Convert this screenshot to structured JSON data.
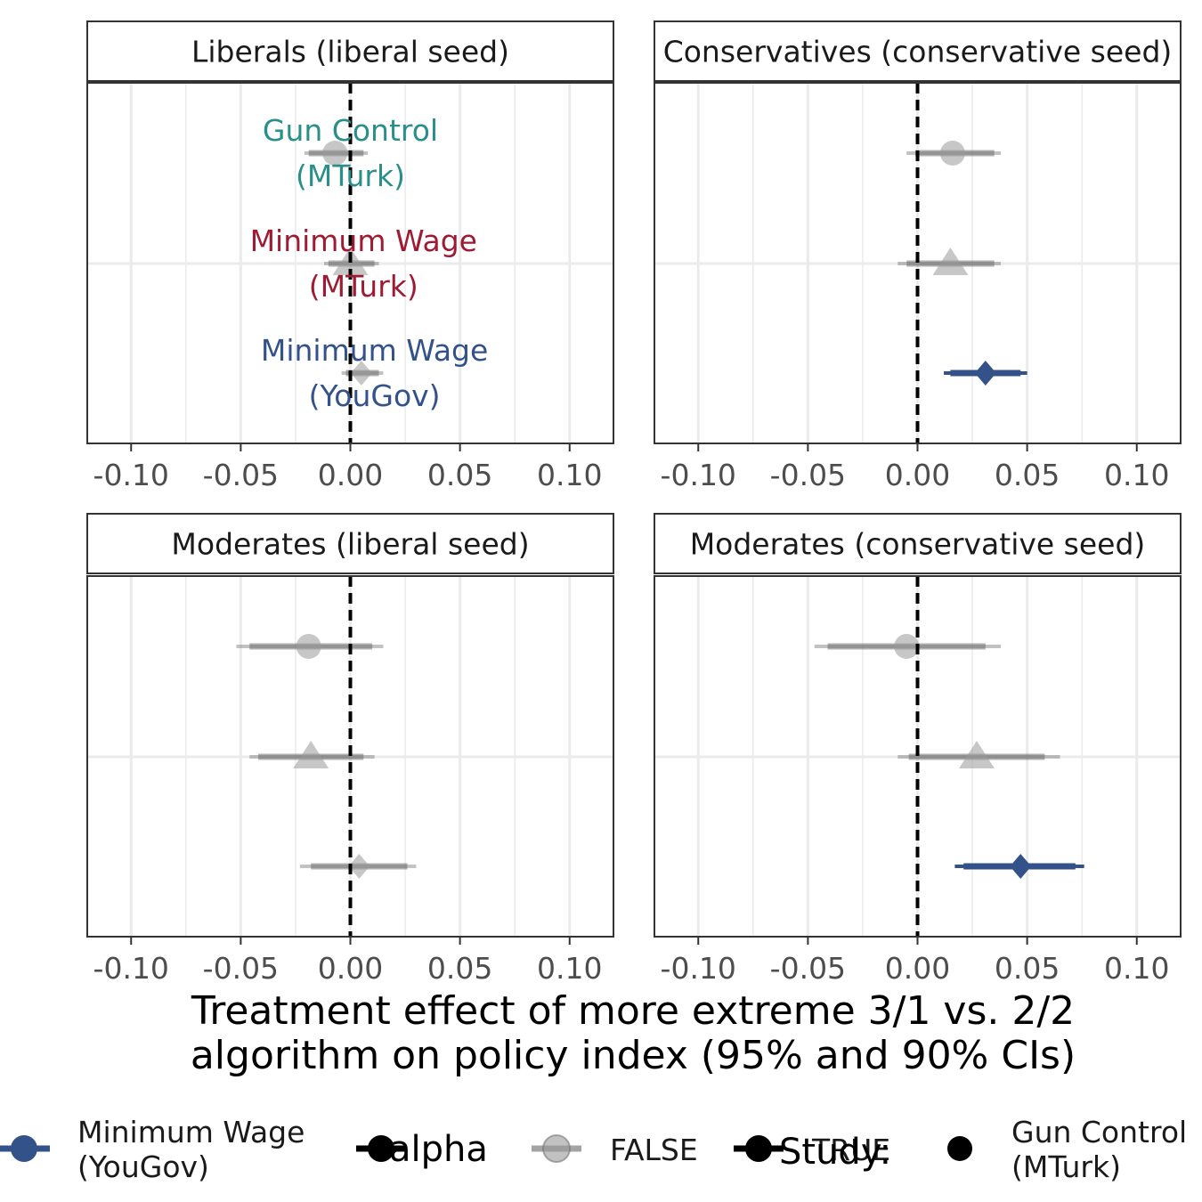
{
  "x_axis_title_line1": "Treatment effect of more extreme 3/1 vs. 2/2",
  "x_axis_title_line2": "algorithm on policy index (95% and 90% CIs)",
  "colors": {
    "youGov": "#33528a",
    "gunControl": "#2a8f8a",
    "minWageMTurk": "#9e1b34",
    "nonsig": "#999999",
    "zeroline": "#000000",
    "grid": "#ebebeb",
    "panel_border": "#333333"
  },
  "legend": {
    "item1_line1": "Minimum Wage",
    "item1_line2": "(YouGov)",
    "alpha_label": "alpha",
    "false_label": "FALSE",
    "study_label": "Study:",
    "true_label": "TRUE",
    "item_gun_line1": "Gun Control",
    "item_gun_line2": "(MTurk)"
  },
  "chart_data": [
    {
      "type": "scatter",
      "title": "Liberals  (liberal seed)",
      "xlim": [
        -0.12,
        0.12
      ],
      "x_ticks": [
        -0.1,
        -0.05,
        0.0,
        0.05,
        0.1
      ],
      "x_tick_labels": [
        "-0.10",
        "-0.05",
        "0.00",
        "0.05",
        "0.10"
      ],
      "estimates": [
        {
          "study": "Gun Control (MTurk)",
          "shape": "circle",
          "estimate": -0.007,
          "ci95": [
            -0.021,
            0.008
          ],
          "ci90": [
            -0.019,
            0.006
          ],
          "significant": false
        },
        {
          "study": "Minimum Wage (MTurk)",
          "shape": "triangle",
          "estimate": 0.0,
          "ci95": [
            -0.012,
            0.013
          ],
          "ci90": [
            -0.01,
            0.011
          ],
          "significant": false
        },
        {
          "study": "Minimum Wage (YouGov)",
          "shape": "diamond",
          "estimate": 0.005,
          "ci95": [
            -0.004,
            0.015
          ],
          "ci90": [
            -0.002,
            0.013
          ],
          "significant": false
        }
      ],
      "annotations": [
        {
          "line1": "Gun Control",
          "line2": "(MTurk)",
          "colorKey": "gunControl",
          "row": 0
        },
        {
          "line1": "Minimum Wage",
          "line2": "(MTurk)",
          "colorKey": "minWageMTurk",
          "row": 1
        },
        {
          "line1": "Minimum Wage",
          "line2": "(YouGov)",
          "colorKey": "youGov",
          "row": 2
        }
      ]
    },
    {
      "type": "scatter",
      "title": "Conservatives  (conservative seed)",
      "xlim": [
        -0.12,
        0.12
      ],
      "x_ticks": [
        -0.1,
        -0.05,
        0.0,
        0.05,
        0.1
      ],
      "x_tick_labels": [
        "-0.10",
        "-0.05",
        "0.00",
        "0.05",
        "0.10"
      ],
      "estimates": [
        {
          "study": "Gun Control (MTurk)",
          "shape": "circle",
          "estimate": 0.016,
          "ci95": [
            -0.005,
            0.038
          ],
          "ci90": [
            -0.001,
            0.035
          ],
          "significant": false
        },
        {
          "study": "Minimum Wage (MTurk)",
          "shape": "triangle",
          "estimate": 0.015,
          "ci95": [
            -0.009,
            0.038
          ],
          "ci90": [
            -0.005,
            0.035
          ],
          "significant": false
        },
        {
          "study": "Minimum Wage (YouGov)",
          "shape": "diamond",
          "estimate": 0.031,
          "ci95": [
            0.012,
            0.05
          ],
          "ci90": [
            0.015,
            0.047
          ],
          "significant": true
        }
      ],
      "annotations": []
    },
    {
      "type": "scatter",
      "title": "Moderates (liberal seed)",
      "xlim": [
        -0.12,
        0.12
      ],
      "x_ticks": [
        -0.1,
        -0.05,
        0.0,
        0.05,
        0.1
      ],
      "x_tick_labels": [
        "-0.10",
        "-0.05",
        "0.00",
        "0.05",
        "0.10"
      ],
      "estimates": [
        {
          "study": "Gun Control (MTurk)",
          "shape": "circle",
          "estimate": -0.019,
          "ci95": [
            -0.052,
            0.015
          ],
          "ci90": [
            -0.046,
            0.01
          ],
          "significant": false
        },
        {
          "study": "Minimum Wage (MTurk)",
          "shape": "triangle",
          "estimate": -0.018,
          "ci95": [
            -0.046,
            0.011
          ],
          "ci90": [
            -0.042,
            0.006
          ],
          "significant": false
        },
        {
          "study": "Minimum Wage (YouGov)",
          "shape": "diamond",
          "estimate": 0.004,
          "ci95": [
            -0.023,
            0.03
          ],
          "ci90": [
            -0.018,
            0.026
          ],
          "significant": false
        }
      ],
      "annotations": []
    },
    {
      "type": "scatter",
      "title": "Moderates  (conservative seed)",
      "xlim": [
        -0.12,
        0.12
      ],
      "x_ticks": [
        -0.1,
        -0.05,
        0.0,
        0.05,
        0.1
      ],
      "x_tick_labels": [
        "-0.10",
        "-0.05",
        "0.00",
        "0.05",
        "0.10"
      ],
      "estimates": [
        {
          "study": "Gun Control (MTurk)",
          "shape": "circle",
          "estimate": -0.005,
          "ci95": [
            -0.047,
            0.038
          ],
          "ci90": [
            -0.041,
            0.031
          ],
          "significant": false
        },
        {
          "study": "Minimum Wage (MTurk)",
          "shape": "triangle",
          "estimate": 0.027,
          "ci95": [
            -0.009,
            0.065
          ],
          "ci90": [
            -0.004,
            0.058
          ],
          "significant": false
        },
        {
          "study": "Minimum Wage (YouGov)",
          "shape": "diamond",
          "estimate": 0.047,
          "ci95": [
            0.017,
            0.076
          ],
          "ci90": [
            0.021,
            0.072
          ],
          "significant": true
        }
      ],
      "annotations": []
    }
  ]
}
